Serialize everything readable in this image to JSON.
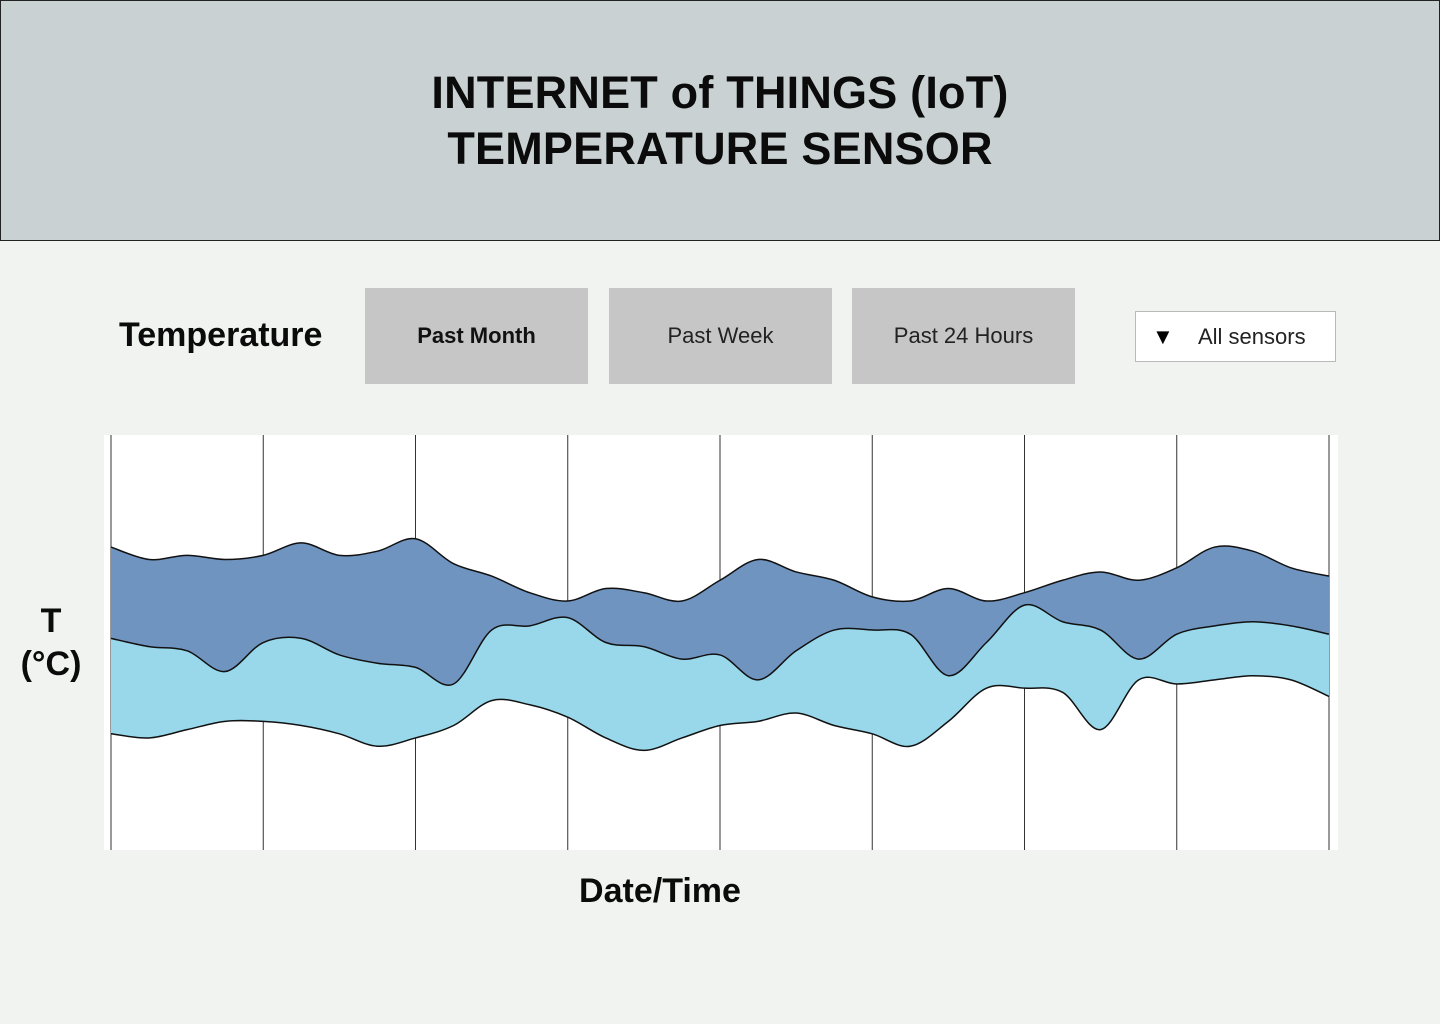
{
  "header": {
    "title_line1": "INTERNET of THINGS (IoT)",
    "title_line2": "TEMPERATURE SENSOR"
  },
  "controls": {
    "section_label": "Temperature",
    "tabs": [
      {
        "label": "Past Month",
        "active": true
      },
      {
        "label": "Past Week",
        "active": false
      },
      {
        "label": "Past 24 Hours",
        "active": false
      }
    ],
    "sensor_select": {
      "arrow": "▼",
      "icon": "dropdown-triangle-icon",
      "selected": "All sensors"
    }
  },
  "chart_data": {
    "type": "area",
    "stacked": true,
    "xlabel": "Date/Time",
    "ylabel_line1": "T",
    "ylabel_line2": "(°C)",
    "x": [
      0,
      1,
      2,
      3,
      4,
      5,
      6,
      7,
      8,
      9,
      10,
      11,
      12,
      13,
      14,
      15,
      16,
      17,
      18,
      19,
      20,
      21,
      22,
      23,
      24,
      25,
      26,
      27,
      28,
      29,
      30,
      31,
      32
    ],
    "vertical_gridlines": 9,
    "grid": true,
    "series_colors": [
      "#98d8ea",
      "#7094c0"
    ],
    "bottom_line": [
      0.28,
      0.27,
      0.29,
      0.31,
      0.31,
      0.3,
      0.28,
      0.25,
      0.27,
      0.3,
      0.36,
      0.35,
      0.32,
      0.27,
      0.24,
      0.27,
      0.3,
      0.31,
      0.33,
      0.3,
      0.28,
      0.25,
      0.31,
      0.39,
      0.39,
      0.38,
      0.29,
      0.41,
      0.4,
      0.41,
      0.42,
      0.41,
      0.37
    ],
    "middle_line": [
      0.51,
      0.49,
      0.48,
      0.43,
      0.5,
      0.51,
      0.47,
      0.45,
      0.44,
      0.4,
      0.53,
      0.54,
      0.56,
      0.5,
      0.49,
      0.46,
      0.47,
      0.41,
      0.48,
      0.53,
      0.53,
      0.52,
      0.42,
      0.5,
      0.59,
      0.55,
      0.53,
      0.46,
      0.52,
      0.54,
      0.55,
      0.54,
      0.52
    ],
    "top_line": [
      0.73,
      0.7,
      0.71,
      0.7,
      0.71,
      0.74,
      0.71,
      0.72,
      0.75,
      0.69,
      0.66,
      0.62,
      0.6,
      0.63,
      0.62,
      0.6,
      0.65,
      0.7,
      0.67,
      0.65,
      0.61,
      0.6,
      0.63,
      0.6,
      0.62,
      0.65,
      0.67,
      0.65,
      0.68,
      0.73,
      0.72,
      0.68,
      0.66
    ]
  }
}
